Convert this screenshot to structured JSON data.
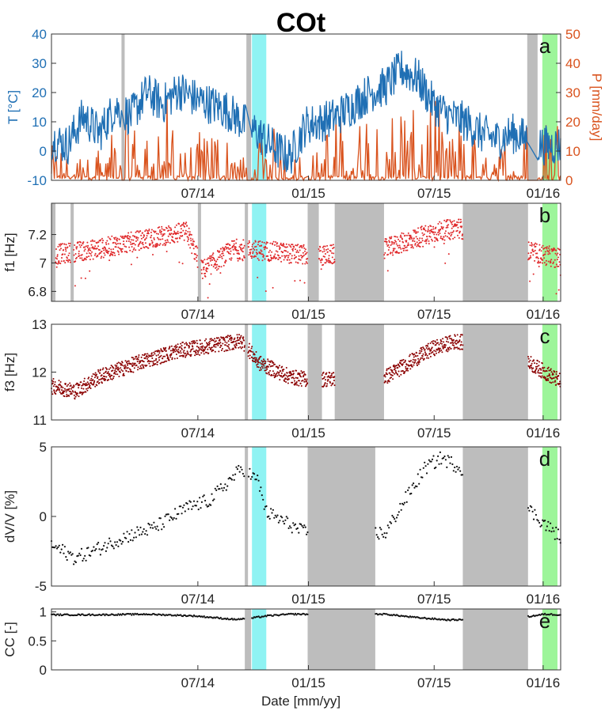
{
  "figure_title": "COt",
  "xlabel": "Date [mm/yy]",
  "chart_data": [
    {
      "type": "line",
      "panel_letter": "a",
      "ylabel_left": "T [°C]",
      "ylabel_right": "P [mm/day]",
      "ylim_left": [
        -10,
        40
      ],
      "ylim_right": [
        0,
        50
      ],
      "yticks_left": [
        "40",
        "30",
        "20",
        "10",
        "0",
        "-10"
      ],
      "yticks_right": [
        "50",
        "40",
        "30",
        "20",
        "10",
        "0"
      ],
      "xticks": [
        "07/14",
        "01/15",
        "07/15",
        "01/16"
      ],
      "temperature_color": "#1f6fb4",
      "precip_color": "#d9531e",
      "temperature_series": [
        [
          0,
          4
        ],
        [
          20,
          2
        ],
        [
          40,
          12
        ],
        [
          60,
          6
        ],
        [
          80,
          15
        ],
        [
          100,
          12
        ],
        [
          120,
          20
        ],
        [
          140,
          16
        ],
        [
          160,
          21
        ],
        [
          180,
          18
        ],
        [
          200,
          16
        ],
        [
          220,
          14
        ],
        [
          240,
          10
        ],
        [
          260,
          6
        ],
        [
          280,
          1
        ],
        [
          300,
          -2
        ],
        [
          320,
          9
        ],
        [
          340,
          10
        ],
        [
          360,
          12
        ],
        [
          380,
          16
        ],
        [
          400,
          20
        ],
        [
          420,
          22
        ],
        [
          440,
          28
        ],
        [
          460,
          25
        ],
        [
          480,
          16
        ],
        [
          500,
          12
        ],
        [
          520,
          10
        ],
        [
          540,
          6
        ],
        [
          560,
          4
        ],
        [
          580,
          6
        ],
        [
          600,
          4
        ],
        [
          615,
          2
        ]
      ],
      "precip_series": [
        [
          10,
          12
        ],
        [
          30,
          5
        ],
        [
          50,
          28
        ],
        [
          70,
          10
        ],
        [
          90,
          30
        ],
        [
          110,
          15
        ],
        [
          130,
          22
        ],
        [
          150,
          32
        ],
        [
          170,
          8
        ],
        [
          190,
          22
        ],
        [
          210,
          18
        ],
        [
          230,
          12
        ],
        [
          250,
          6
        ],
        [
          270,
          20
        ],
        [
          300,
          14
        ],
        [
          320,
          8
        ],
        [
          360,
          24
        ],
        [
          380,
          16
        ],
        [
          400,
          28
        ],
        [
          420,
          20
        ],
        [
          440,
          30
        ],
        [
          460,
          22
        ],
        [
          480,
          34
        ],
        [
          500,
          14
        ],
        [
          520,
          26
        ],
        [
          540,
          8
        ],
        [
          560,
          12
        ],
        [
          580,
          18
        ],
        [
          600,
          40
        ],
        [
          615,
          22
        ]
      ]
    },
    {
      "type": "scatter",
      "panel_letter": "b",
      "ylabel": "f1 [Hz]",
      "ylim": [
        6.73,
        7.42
      ],
      "yticks": [
        "7.2",
        "7",
        "6.8"
      ],
      "xticks": [
        "07/14",
        "01/15",
        "07/15",
        "01/16"
      ],
      "color": "#e0292b",
      "series_trend": [
        [
          5,
          7.06
        ],
        [
          60,
          7.1
        ],
        [
          120,
          7.17
        ],
        [
          170,
          7.22
        ],
        [
          190,
          6.95
        ],
        [
          230,
          7.1
        ],
        [
          280,
          7.08
        ],
        [
          310,
          7.06
        ],
        [
          340,
          7.05
        ],
        [
          420,
          7.1
        ],
        [
          470,
          7.2
        ],
        [
          510,
          7.25
        ],
        [
          600,
          7.08
        ],
        [
          640,
          7.03
        ]
      ]
    },
    {
      "type": "scatter",
      "panel_letter": "c",
      "ylabel": "f3 [Hz]",
      "ylim": [
        11,
        13
      ],
      "yticks": [
        "13",
        "12",
        "11"
      ],
      "xticks": [
        "07/14",
        "01/15",
        "07/15",
        "01/16"
      ],
      "color": "#8b0000",
      "series_trend": [
        [
          5,
          11.7
        ],
        [
          30,
          11.6
        ],
        [
          60,
          11.9
        ],
        [
          110,
          12.2
        ],
        [
          160,
          12.45
        ],
        [
          200,
          12.55
        ],
        [
          240,
          12.65
        ],
        [
          260,
          12.2
        ],
        [
          300,
          11.9
        ],
        [
          320,
          11.85
        ],
        [
          340,
          11.85
        ],
        [
          420,
          11.9
        ],
        [
          450,
          12.2
        ],
        [
          480,
          12.5
        ],
        [
          510,
          12.65
        ],
        [
          590,
          12.3
        ],
        [
          620,
          12.0
        ],
        [
          640,
          11.8
        ]
      ]
    },
    {
      "type": "scatter",
      "panel_letter": "d",
      "ylabel": "dV/V [%]",
      "ylim": [
        -5,
        5
      ],
      "yticks": [
        "5",
        "0",
        "-5"
      ],
      "xticks": [
        "07/14",
        "01/15",
        "07/15",
        "01/16"
      ],
      "color": "#111111",
      "series_trend": [
        [
          5,
          -2.2
        ],
        [
          30,
          -3.0
        ],
        [
          60,
          -2.3
        ],
        [
          90,
          -1.5
        ],
        [
          130,
          -0.8
        ],
        [
          170,
          0.6
        ],
        [
          200,
          1.2
        ],
        [
          240,
          3.5
        ],
        [
          260,
          2.5
        ],
        [
          270,
          0.3
        ],
        [
          300,
          -0.6
        ],
        [
          315,
          -1.1
        ],
        [
          420,
          -1.2
        ],
        [
          440,
          0.8
        ],
        [
          470,
          3.5
        ],
        [
          490,
          4.2
        ],
        [
          580,
          1.6
        ],
        [
          600,
          0.5
        ],
        [
          625,
          -0.8
        ],
        [
          640,
          -1.5
        ]
      ]
    },
    {
      "type": "scatter",
      "panel_letter": "e",
      "ylabel": "CC [-]",
      "ylim": [
        0,
        1.05
      ],
      "yticks": [
        "1",
        "0.5",
        "0"
      ],
      "xticks": [
        "07/14",
        "01/15",
        "07/15",
        "01/16"
      ],
      "color": "#111111",
      "series_trend": [
        [
          5,
          0.95
        ],
        [
          60,
          0.95
        ],
        [
          120,
          0.96
        ],
        [
          180,
          0.93
        ],
        [
          230,
          0.87
        ],
        [
          245,
          0.88
        ],
        [
          270,
          0.93
        ],
        [
          300,
          0.96
        ],
        [
          315,
          0.96
        ],
        [
          420,
          0.96
        ],
        [
          460,
          0.9
        ],
        [
          500,
          0.86
        ],
        [
          590,
          0.9
        ],
        [
          620,
          0.96
        ],
        [
          640,
          0.95
        ]
      ]
    }
  ]
}
